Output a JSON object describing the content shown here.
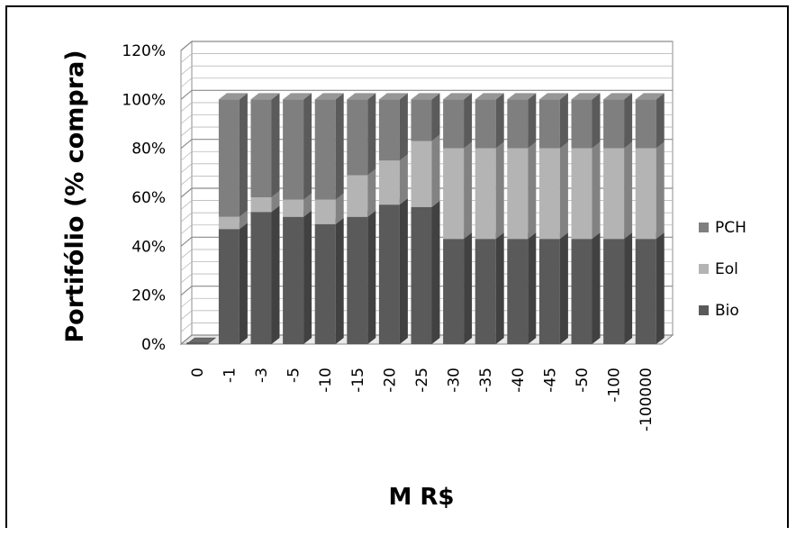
{
  "chart_data": {
    "type": "bar",
    "stacked": true,
    "style": "3d-stacked-column-percent",
    "categories": [
      "0",
      "-1",
      "-3",
      "-5",
      "-10",
      "-15",
      "-20",
      "-25",
      "-30",
      "-35",
      "-40",
      "-45",
      "-50",
      "-100",
      "-100000"
    ],
    "series": [
      {
        "name": "Bio",
        "color": "#5a5a5a",
        "values": [
          0,
          47,
          54,
          52,
          49,
          52,
          57,
          56,
          43,
          43,
          43,
          43,
          43,
          43,
          43
        ]
      },
      {
        "name": "Eol",
        "color": "#b4b4b4",
        "values": [
          0,
          5,
          6,
          7,
          10,
          17,
          18,
          27,
          37,
          37,
          37,
          37,
          37,
          37,
          37
        ]
      },
      {
        "name": "PCH",
        "color": "#7f7f7f",
        "values": [
          0,
          48,
          40,
          41,
          41,
          31,
          25,
          17,
          20,
          20,
          20,
          20,
          20,
          20,
          20
        ]
      }
    ],
    "xlabel": "M R$",
    "ylabel": "Portifólio (% compra)",
    "ylim": [
      0,
      120
    ],
    "yticks": [
      "0%",
      "20%",
      "40%",
      "60%",
      "80%",
      "100%",
      "120%"
    ],
    "grid": true,
    "legend_position": "right",
    "legend_order": [
      "PCH",
      "Eol",
      "Bio"
    ]
  }
}
